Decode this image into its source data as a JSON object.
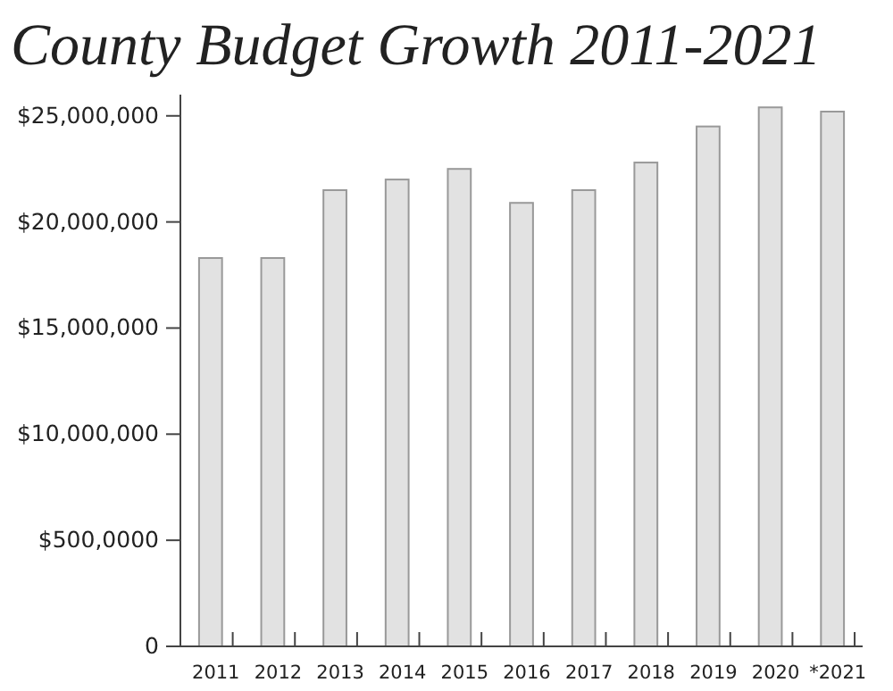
{
  "chart_data": {
    "type": "bar",
    "title": "County Budget Growth 2011-2021",
    "categories": [
      "2011",
      "2012",
      "2013",
      "2014",
      "2015",
      "2016",
      "2017",
      "2018",
      "2019",
      "2020",
      "*2021"
    ],
    "values": [
      18300000,
      18300000,
      21500000,
      22000000,
      22500000,
      20900000,
      21500000,
      22800000,
      24500000,
      25400000,
      25200000
    ],
    "color": "#e2e2e2",
    "ylim": [
      0,
      26000000
    ],
    "yticks": [
      0,
      {
        "value": 5000000,
        "label": "$500,0000"
      },
      {
        "value": 10000000,
        "label": "$10,000,000"
      },
      {
        "value": 15000000,
        "label": "$15,000,000"
      },
      {
        "value": 20000000,
        "label": "$20,000,000"
      },
      {
        "value": 25000000,
        "label": "$25,000,000"
      }
    ],
    "grid": false
  }
}
